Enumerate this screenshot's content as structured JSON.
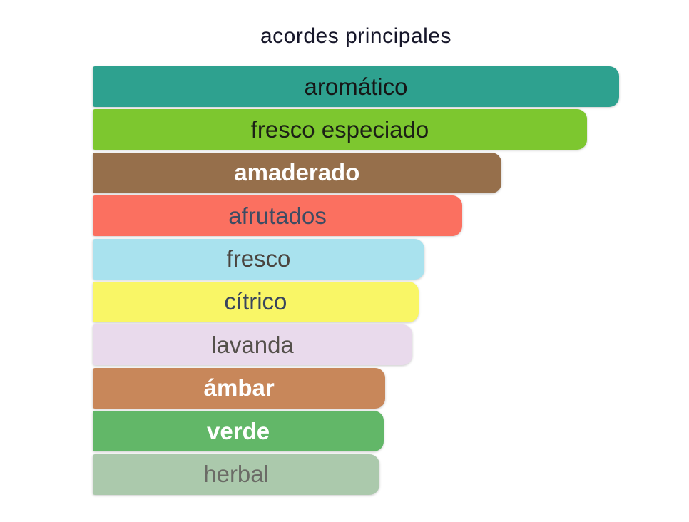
{
  "title": "acordes principales",
  "chart_data": {
    "type": "bar",
    "orientation": "horizontal",
    "title": "acordes principales",
    "categories": [
      "aromático",
      "fresco especiado",
      "amaderado",
      "afrutados",
      "fresco",
      "cítrico",
      "lavanda",
      "ámbar",
      "verde",
      "herbal"
    ],
    "values": [
      100,
      93.9,
      77.6,
      70.2,
      63.0,
      61.9,
      60.7,
      55.6,
      55.3,
      54.5
    ],
    "value_unit": "percent of longest bar (estimated from pixel widths, no numeric axis shown)",
    "bar_colors": [
      "#2ea18f",
      "#7dc72f",
      "#966f4b",
      "#fb7060",
      "#a9e2ee",
      "#f9f666",
      "#e9daec",
      "#c8875a",
      "#62b768",
      "#abc9ac"
    ],
    "label_colors": [
      "#161616",
      "#1c2016",
      "#ffffff",
      "#3d4c63",
      "#4a443f",
      "#39455e",
      "#54504b",
      "#ffffff",
      "#ffffff",
      "#6b6b66"
    ],
    "xlabel": "",
    "ylabel": "",
    "grid": false,
    "legend": "none",
    "notes": "bar labels rendered inline, centered inside each bar; rounded right corners"
  },
  "bars": [
    {
      "label": "aromático",
      "width_pct": 100.0,
      "color": "#2ea18f",
      "text_color": "#161616",
      "bold": false
    },
    {
      "label": "fresco especiado",
      "width_pct": 93.9,
      "color": "#7dc72f",
      "text_color": "#1c2016",
      "bold": false
    },
    {
      "label": "amaderado",
      "width_pct": 77.6,
      "color": "#966f4b",
      "text_color": "#ffffff",
      "bold": true
    },
    {
      "label": "afrutados",
      "width_pct": 70.2,
      "color": "#fb7060",
      "text_color": "#3d4c63",
      "bold": false
    },
    {
      "label": "fresco",
      "width_pct": 63.0,
      "color": "#a9e2ee",
      "text_color": "#4a443f",
      "bold": false
    },
    {
      "label": "cítrico",
      "width_pct": 61.9,
      "color": "#f9f666",
      "text_color": "#39455e",
      "bold": false
    },
    {
      "label": "lavanda",
      "width_pct": 60.7,
      "color": "#e9daec",
      "text_color": "#54504b",
      "bold": false
    },
    {
      "label": "ámbar",
      "width_pct": 55.6,
      "color": "#c8875a",
      "text_color": "#ffffff",
      "bold": true
    },
    {
      "label": "verde",
      "width_pct": 55.3,
      "color": "#62b768",
      "text_color": "#ffffff",
      "bold": true
    },
    {
      "label": "herbal",
      "width_pct": 54.5,
      "color": "#abc9ac",
      "text_color": "#6b6b66",
      "bold": false
    }
  ]
}
